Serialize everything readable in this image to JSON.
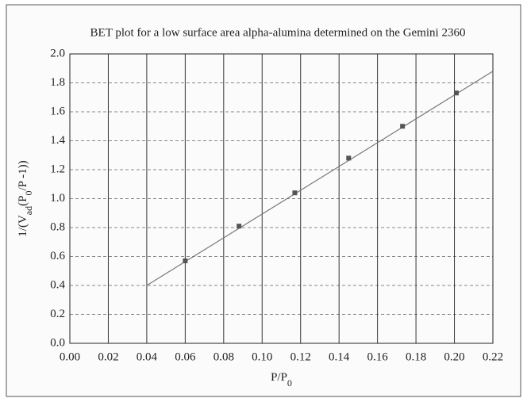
{
  "chart_data": {
    "type": "scatter",
    "title": "BET plot for a low surface area alpha-alumina determined on the Gemini 2360",
    "x_label": [
      "P/P",
      "0"
    ],
    "y_label": [
      "1/(V",
      "ad",
      "(P",
      "0",
      "/P -1))"
    ],
    "x": [
      0.06,
      0.088,
      0.117,
      0.145,
      0.173,
      0.201
    ],
    "values": [
      0.57,
      0.81,
      1.04,
      1.28,
      1.5,
      1.73
    ],
    "color": "#555555",
    "fit_line": {
      "x": [
        0.04,
        0.22
      ],
      "values": [
        0.4,
        1.88
      ],
      "color": "#777777"
    },
    "xlim": [
      0,
      0.22
    ],
    "xticks": [
      {
        "value": 0,
        "label": "0.00"
      },
      0.02,
      0.04,
      0.06,
      0.08,
      {
        "value": 0.1,
        "label": "0.10"
      },
      0.12,
      0.14,
      0.16,
      0.18,
      {
        "value": 0.2,
        "label": "0.20"
      },
      0.22
    ],
    "ylim": [
      0,
      2
    ],
    "yticks": [
      {
        "value": 0,
        "label": "0.0"
      },
      0.2,
      0.4,
      0.6,
      0.8,
      {
        "value": 1,
        "label": "1.0"
      },
      1.2,
      1.4,
      1.6,
      1.8,
      {
        "value": 2,
        "label": "2.0"
      }
    ],
    "grid": true
  }
}
